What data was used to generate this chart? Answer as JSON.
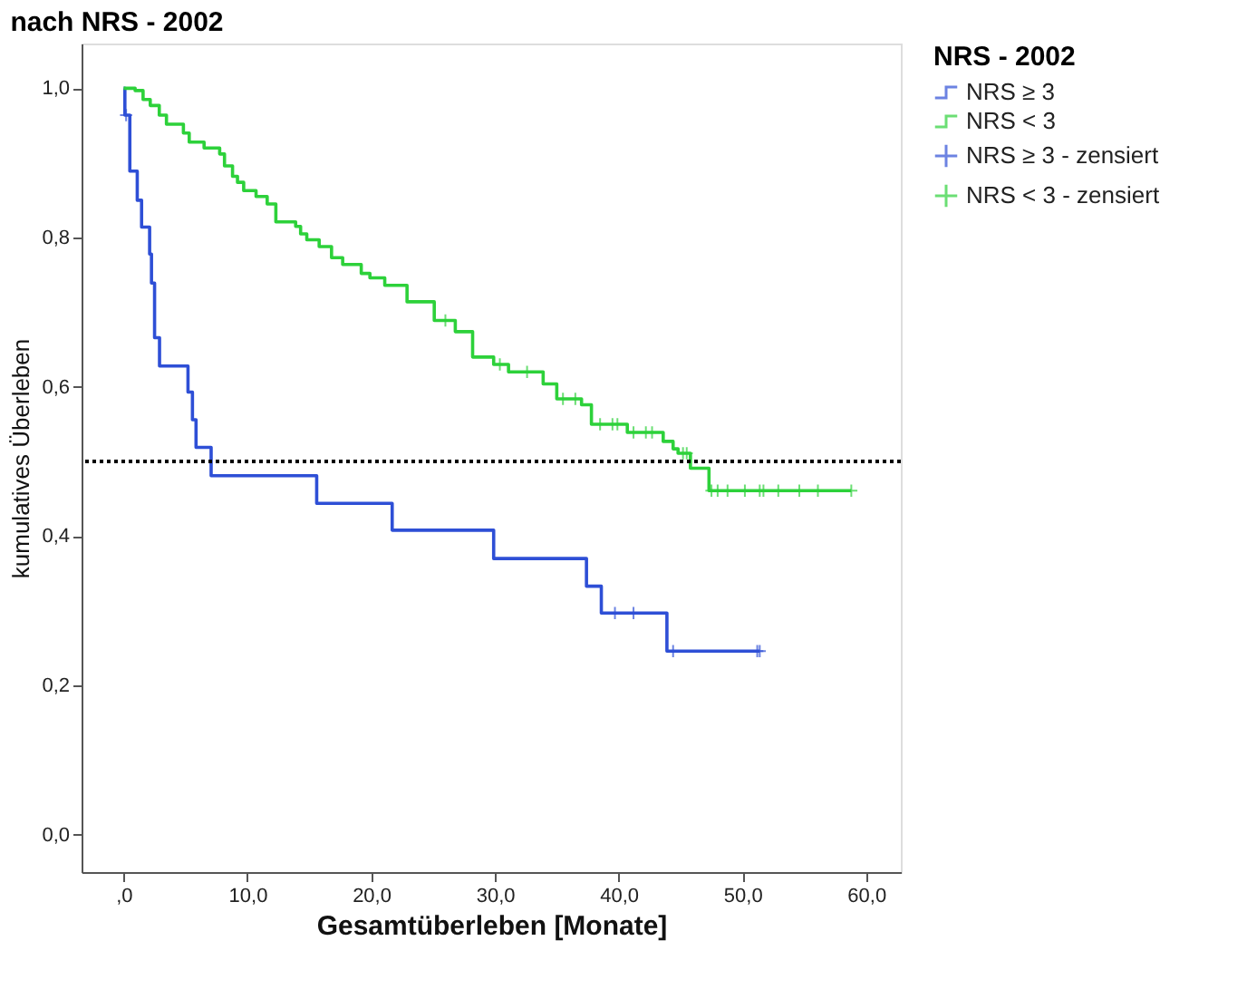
{
  "chart_data": {
    "type": "step",
    "title": "nach NRS - 2002",
    "xlabel": "Gesamtüberleben [Monate]",
    "ylabel": "kumulatives Überleben",
    "legend_title": "NRS - 2002",
    "legend": "top right",
    "grid": false,
    "xlim": [
      -3.4,
      62.8
    ],
    "ylim": [
      -0.05,
      1.06
    ],
    "xticks": [
      {
        "value": 0,
        "label": ",0"
      },
      {
        "value": 10,
        "label": "10,0"
      },
      {
        "value": 20,
        "label": "20,0"
      },
      {
        "value": 30,
        "label": "30,0"
      },
      {
        "value": 40,
        "label": "40,0"
      },
      {
        "value": 50,
        "label": "50,0"
      },
      {
        "value": 60,
        "label": "60,0"
      }
    ],
    "yticks": [
      {
        "value": 0,
        "label": "0,0"
      },
      {
        "value": 0.2,
        "label": "0,2"
      },
      {
        "value": 0.4,
        "label": "0,4"
      },
      {
        "value": 0.6,
        "label": "0,6"
      },
      {
        "value": 0.8,
        "label": "0,8"
      },
      {
        "value": 1.0,
        "label": "1,0"
      }
    ],
    "ref_lines": [
      {
        "axis": "y",
        "value": 0.5,
        "color": "#000000",
        "line_style": "dotted"
      }
    ],
    "series": [
      {
        "name": "NRS ≥ 3",
        "color": "#2e4fd6",
        "x": [
          0,
          0.1,
          0.5,
          1.1,
          1.45,
          2.1,
          2.25,
          2.5,
          2.9,
          5.2,
          5.56,
          5.85,
          7.07,
          15.6,
          21.7,
          29.9,
          37.4,
          38.6,
          43.9,
          51.4
        ],
        "values": [
          1.0,
          0.964,
          0.889,
          0.85,
          0.814,
          0.778,
          0.739,
          0.666,
          0.628,
          0.593,
          0.556,
          0.519,
          0.481,
          0.444,
          0.408,
          0.37,
          0.333,
          0.297,
          0.246,
          0.246
        ]
      },
      {
        "name": "NRS < 3",
        "color": "#2dd13a",
        "x": [
          0,
          0.93,
          1.57,
          2.15,
          2.88,
          3.46,
          4.83,
          5.3,
          6.5,
          7.76,
          8.15,
          8.8,
          9.2,
          9.7,
          10.7,
          11.6,
          12.3,
          13.9,
          14.3,
          14.8,
          15.8,
          16.8,
          17.7,
          19.2,
          19.9,
          21.1,
          22.9,
          25.1,
          26.8,
          28.2,
          29.9,
          31.1,
          33.9,
          35.0,
          37.0,
          37.8,
          40.7,
          43.6,
          44.4,
          44.8,
          45.8,
          47.3,
          58.8
        ],
        "values": [
          1.0,
          0.997,
          0.985,
          0.977,
          0.964,
          0.952,
          0.94,
          0.928,
          0.92,
          0.912,
          0.896,
          0.882,
          0.874,
          0.863,
          0.855,
          0.845,
          0.821,
          0.815,
          0.805,
          0.797,
          0.788,
          0.773,
          0.764,
          0.752,
          0.746,
          0.736,
          0.714,
          0.689,
          0.674,
          0.64,
          0.63,
          0.62,
          0.604,
          0.584,
          0.576,
          0.55,
          0.539,
          0.527,
          0.517,
          0.511,
          0.491,
          0.461,
          0.461
        ]
      },
      {
        "name": "NRS ≥ 3 - zensiert",
        "type": "scatter",
        "marker": "cross",
        "color": "#2e4fd6",
        "x": [
          0.2,
          39.7,
          41.2,
          44.4,
          51.2,
          51.4
        ],
        "values": [
          0.964,
          0.297,
          0.297,
          0.246,
          0.246,
          0.246
        ]
      },
      {
        "name": "NRS < 3 - zensiert",
        "type": "scatter",
        "marker": "cross",
        "color": "#2dd13a",
        "x": [
          26.0,
          30.4,
          32.6,
          35.5,
          36.5,
          38.5,
          39.5,
          39.9,
          41.2,
          42.2,
          42.7,
          45.2,
          45.5,
          47.5,
          48.0,
          48.8,
          50.2,
          51.4,
          51.7,
          52.9,
          54.6,
          56.1,
          58.8
        ],
        "values": [
          0.689,
          0.63,
          0.62,
          0.584,
          0.584,
          0.55,
          0.55,
          0.55,
          0.539,
          0.539,
          0.539,
          0.511,
          0.511,
          0.461,
          0.461,
          0.461,
          0.461,
          0.461,
          0.461,
          0.461,
          0.461,
          0.461,
          0.461
        ]
      }
    ]
  }
}
